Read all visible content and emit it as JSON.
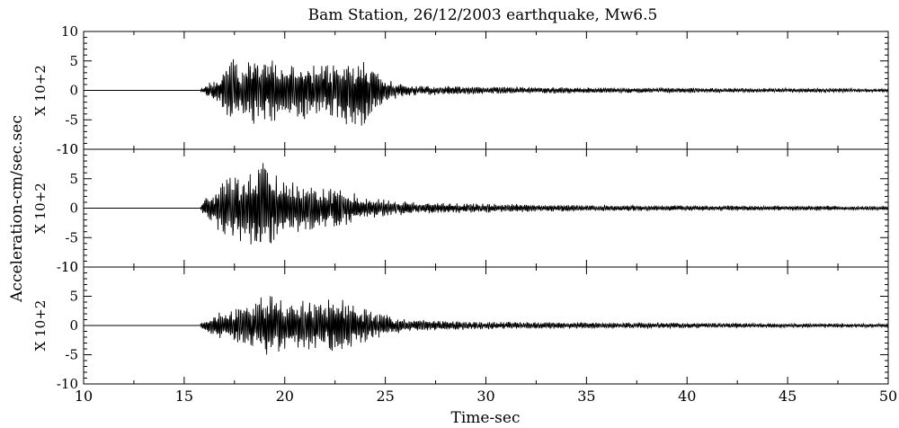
{
  "chart_data": {
    "type": "line",
    "title": "Bam Station, 26/12/2003 earthquake, Mw6.5",
    "xlabel": "Time-sec",
    "ylabel": "Acceleration-cm/sec.sec",
    "y_multiplier_label": "X 10+2",
    "xlim": [
      10,
      50
    ],
    "x_ticks": [
      10,
      15,
      20,
      25,
      30,
      35,
      40,
      45,
      50
    ],
    "grid": false,
    "line_color": "#000000",
    "panels": [
      {
        "ylim": [
          -10,
          10
        ],
        "y_ticks": [
          10,
          5,
          0,
          -5,
          -10
        ],
        "y_tick_labels": [
          "10",
          "5",
          "0",
          "-5",
          "-10"
        ],
        "envelope": {
          "x": [
            10,
            15.8,
            16.3,
            16.8,
            17.3,
            17.8,
            18.3,
            18.8,
            19.3,
            19.8,
            20.3,
            20.8,
            21.3,
            21.8,
            22.3,
            22.8,
            23.3,
            23.8,
            24.3,
            24.8,
            25.3,
            25.8,
            26.5,
            27.5,
            29,
            31,
            33,
            35,
            38,
            41,
            44,
            47,
            50
          ],
          "y": [
            0,
            0.2,
            1.5,
            2.5,
            6.5,
            4,
            6.5,
            5,
            6,
            5,
            4.5,
            5.5,
            5,
            5.5,
            5,
            5.5,
            6,
            7.5,
            4.5,
            3,
            1.8,
            1.2,
            0.9,
            0.8,
            0.7,
            0.6,
            0.55,
            0.5,
            0.45,
            0.4,
            0.35,
            0.35,
            0.3
          ]
        }
      },
      {
        "ylim": [
          -10,
          10
        ],
        "y_ticks": [
          10,
          5,
          0,
          -5,
          -10
        ],
        "y_tick_labels": [
          "10",
          "5",
          "0",
          "-5",
          "-10"
        ],
        "envelope": {
          "x": [
            10,
            15.8,
            16.2,
            16.6,
            17,
            17.5,
            18,
            18.5,
            19,
            19.5,
            20,
            20.5,
            21,
            21.5,
            22,
            22.5,
            23,
            23.5,
            24,
            24.5,
            25,
            25.5,
            26.5,
            28,
            30,
            32,
            34,
            36,
            38,
            41,
            44,
            47,
            50
          ],
          "y": [
            0,
            0.3,
            3,
            4,
            5,
            5.5,
            6,
            6.5,
            8,
            6.5,
            5,
            4.5,
            4.5,
            4,
            3.5,
            3.5,
            3,
            2.5,
            2,
            1.8,
            1.5,
            1.3,
            1,
            0.9,
            0.8,
            0.7,
            0.6,
            0.6,
            0.5,
            0.5,
            0.4,
            0.4,
            0.35
          ]
        }
      },
      {
        "ylim": [
          -10,
          10
        ],
        "y_ticks": [
          10,
          5,
          0,
          -5,
          -10
        ],
        "y_tick_labels": [
          "10",
          "5",
          "0",
          "-5",
          "-10"
        ],
        "envelope": {
          "x": [
            10,
            15.8,
            16.2,
            16.8,
            17.5,
            18,
            18.5,
            19,
            19.5,
            20,
            20.5,
            21,
            21.5,
            22,
            22.5,
            23,
            23.5,
            24,
            24.5,
            25,
            25.5,
            26,
            27,
            28.5,
            30,
            32,
            35,
            38,
            41,
            44,
            47,
            50
          ],
          "y": [
            0,
            0.3,
            1.5,
            2.5,
            3,
            3.5,
            4,
            5.5,
            5,
            4.5,
            4,
            5,
            4.5,
            4.5,
            4.5,
            4.5,
            3.5,
            3,
            2.5,
            2,
            1.5,
            1.2,
            1,
            0.8,
            0.7,
            0.6,
            0.55,
            0.5,
            0.45,
            0.4,
            0.35,
            0.3
          ]
        }
      }
    ]
  }
}
